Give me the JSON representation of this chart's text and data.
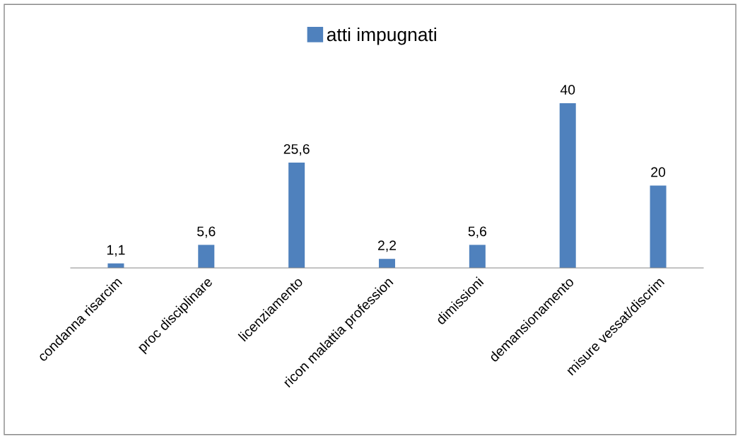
{
  "chart_data": {
    "type": "bar",
    "categories": [
      "condanna risarcim",
      "proc disciplinare",
      "licenziamento",
      "ricon malattia profession",
      "dimissioni",
      "demansionamento",
      "misure vessat/discrim"
    ],
    "series": [
      {
        "name": "atti impugnati",
        "color": "#4f81bd",
        "values": [
          1.1,
          5.6,
          25.6,
          2.2,
          5.6,
          40,
          20
        ],
        "value_labels": [
          "1,1",
          "5,6",
          "25,6",
          "2,2",
          "5,6",
          "40",
          "20"
        ]
      }
    ],
    "legend": "top",
    "grid": false
  }
}
